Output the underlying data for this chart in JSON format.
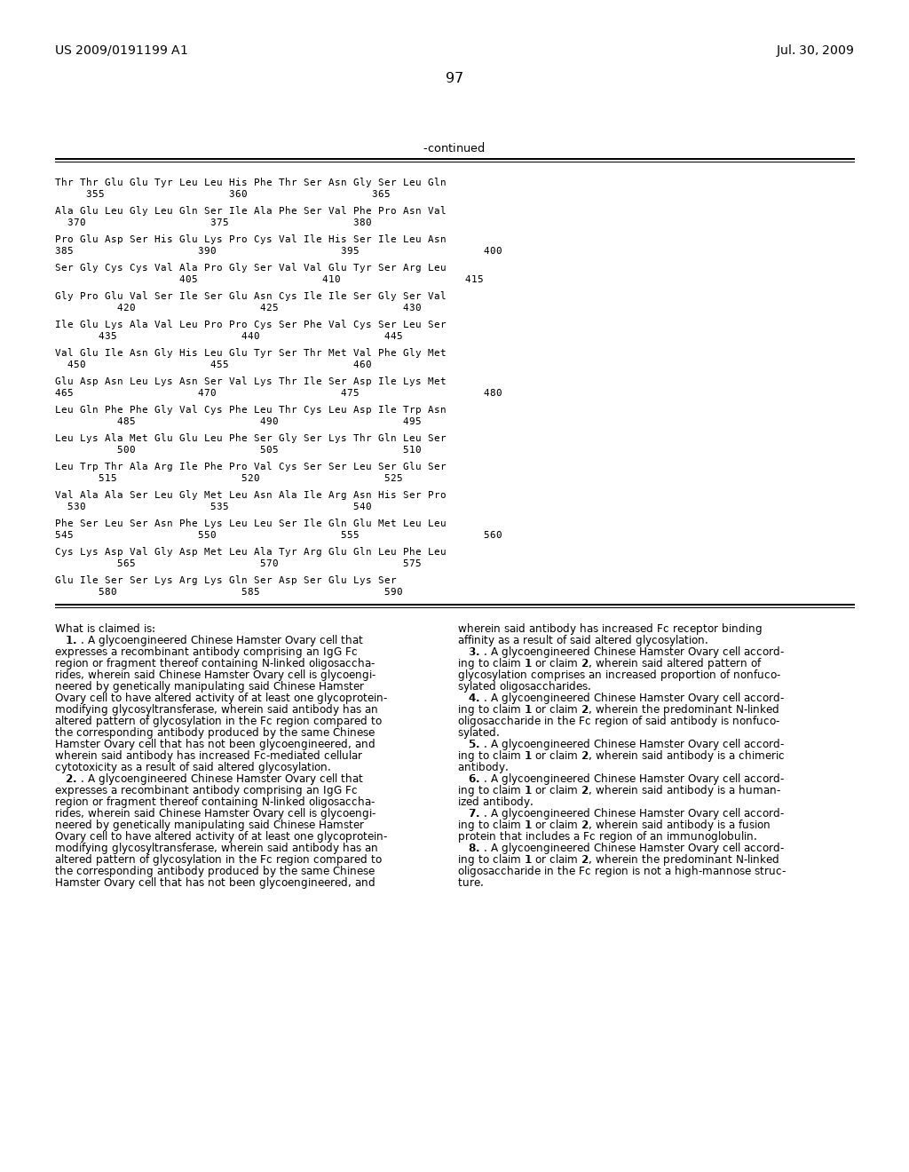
{
  "header_left": "US 2009/0191199 A1",
  "header_right": "Jul. 30, 2009",
  "page_number": "97",
  "continued_label": "-continued",
  "seq_lines": [
    [
      "Thr Thr Glu Glu Tyr Leu Leu His Phe Thr Ser Asn Gly Ser Leu Gln",
      "     355                    360                    365"
    ],
    [
      "Ala Glu Leu Gly Leu Gln Ser Ile Ala Phe Ser Val Phe Pro Asn Val",
      "  370                    375                    380"
    ],
    [
      "Pro Glu Asp Ser His Glu Lys Pro Cys Val Ile His Ser Ile Leu Asn",
      "385                    390                    395                    400"
    ],
    [
      "Ser Gly Cys Cys Val Ala Pro Gly Ser Val Val Glu Tyr Ser Arg Leu",
      "                    405                    410                    415"
    ],
    [
      "Gly Pro Glu Val Ser Ile Ser Glu Asn Cys Ile Ile Ser Gly Ser Val",
      "          420                    425                    430"
    ],
    [
      "Ile Glu Lys Ala Val Leu Pro Pro Cys Ser Phe Val Cys Ser Leu Ser",
      "       435                    440                    445"
    ],
    [
      "Val Glu Ile Asn Gly His Leu Glu Tyr Ser Thr Met Val Phe Gly Met",
      "  450                    455                    460"
    ],
    [
      "Glu Asp Asn Leu Lys Asn Ser Val Lys Thr Ile Ser Asp Ile Lys Met",
      "465                    470                    475                    480"
    ],
    [
      "Leu Gln Phe Phe Gly Val Cys Phe Leu Thr Cys Leu Asp Ile Trp Asn",
      "          485                    490                    495"
    ],
    [
      "Leu Lys Ala Met Glu Glu Leu Phe Ser Gly Ser Lys Thr Gln Leu Ser",
      "          500                    505                    510"
    ],
    [
      "Leu Trp Thr Ala Arg Ile Phe Pro Val Cys Ser Ser Leu Ser Glu Ser",
      "       515                    520                    525"
    ],
    [
      "Val Ala Ala Ser Leu Gly Met Leu Asn Ala Ile Arg Asn His Ser Pro",
      "  530                    535                    540"
    ],
    [
      "Phe Ser Leu Ser Asn Phe Lys Leu Leu Ser Ile Gln Glu Met Leu Leu",
      "545                    550                    555                    560"
    ],
    [
      "Cys Lys Asp Val Gly Asp Met Leu Ala Tyr Arg Glu Gln Leu Phe Leu",
      "          565                    570                    575"
    ],
    [
      "Glu Ile Ser Ser Lys Arg Lys Gln Ser Asp Ser Glu Lys Ser",
      "       580                    585                    590"
    ]
  ],
  "claims_left": [
    {
      "text": "What is claimed is:",
      "indent": 0,
      "bold_prefix": ""
    },
    {
      "text": "1",
      "bold_prefix": "1",
      "rest": ". A glycoengineered Chinese Hamster Ovary cell that",
      "indent": 1
    },
    {
      "text": "expresses a recombinant antibody comprising an IgG Fc",
      "indent": 0,
      "bold_prefix": ""
    },
    {
      "text": "region or fragment thereof containing N-linked oligosaccha-",
      "indent": 0,
      "bold_prefix": ""
    },
    {
      "text": "rides, wherein said Chinese Hamster Ovary cell is glycoengi-",
      "indent": 0,
      "bold_prefix": ""
    },
    {
      "text": "neered by genetically manipulating said Chinese Hamster",
      "indent": 0,
      "bold_prefix": ""
    },
    {
      "text": "Ovary cell to have altered activity of at least one glycoprotein-",
      "indent": 0,
      "bold_prefix": ""
    },
    {
      "text": "modifying glycosyltransferase, wherein said antibody has an",
      "indent": 0,
      "bold_prefix": ""
    },
    {
      "text": "altered pattern of glycosylation in the Fc region compared to",
      "indent": 0,
      "bold_prefix": ""
    },
    {
      "text": "the corresponding antibody produced by the same Chinese",
      "indent": 0,
      "bold_prefix": ""
    },
    {
      "text": "Hamster Ovary cell that has not been glycoengineered, and",
      "indent": 0,
      "bold_prefix": ""
    },
    {
      "text": "wherein said antibody has increased Fc-mediated cellular",
      "indent": 0,
      "bold_prefix": ""
    },
    {
      "text": "cytotoxicity as a result of said altered glycosylation.",
      "indent": 0,
      "bold_prefix": ""
    },
    {
      "text": "2",
      "bold_prefix": "2",
      "rest": ". A glycoengineered Chinese Hamster Ovary cell that",
      "indent": 1
    },
    {
      "text": "expresses a recombinant antibody comprising an IgG Fc",
      "indent": 0,
      "bold_prefix": ""
    },
    {
      "text": "region or fragment thereof containing N-linked oligosaccha-",
      "indent": 0,
      "bold_prefix": ""
    },
    {
      "text": "rides, wherein said Chinese Hamster Ovary cell is glycoengi-",
      "indent": 0,
      "bold_prefix": ""
    },
    {
      "text": "neered by genetically manipulating said Chinese Hamster",
      "indent": 0,
      "bold_prefix": ""
    },
    {
      "text": "Ovary cell to have altered activity of at least one glycoprotein-",
      "indent": 0,
      "bold_prefix": ""
    },
    {
      "text": "modifying glycosyltransferase, wherein said antibody has an",
      "indent": 0,
      "bold_prefix": ""
    },
    {
      "text": "altered pattern of glycosylation in the Fc region compared to",
      "indent": 0,
      "bold_prefix": ""
    },
    {
      "text": "the corresponding antibody produced by the same Chinese",
      "indent": 0,
      "bold_prefix": ""
    },
    {
      "text": "Hamster Ovary cell that has not been glycoengineered, and",
      "indent": 0,
      "bold_prefix": ""
    }
  ],
  "claims_right": [
    {
      "text": "wherein said antibody has increased Fc receptor binding",
      "indent": 0,
      "bold_prefix": ""
    },
    {
      "text": "affinity as a result of said altered glycosylation.",
      "indent": 0,
      "bold_prefix": ""
    },
    {
      "text": "3",
      "bold_prefix": "3",
      "rest": ". A glycoengineered Chinese Hamster Ovary cell accord-",
      "indent": 1
    },
    {
      "text": "ing to claim ",
      "bold_prefix": "",
      "indent": 0,
      "inline_bold": [
        [
          "1",
          " or claim "
        ],
        [
          "2",
          ", wherein said altered pattern of"
        ]
      ]
    },
    {
      "text": "glycosylation comprises an increased proportion of nonfuco-",
      "indent": 0,
      "bold_prefix": ""
    },
    {
      "text": "sylated oligosaccharides.",
      "indent": 0,
      "bold_prefix": ""
    },
    {
      "text": "4",
      "bold_prefix": "4",
      "rest": ". A glycoengineered Chinese Hamster Ovary cell accord-",
      "indent": 1
    },
    {
      "text": "ing to claim ",
      "bold_prefix": "",
      "indent": 0,
      "inline_bold": [
        [
          "1",
          " or claim "
        ],
        [
          "2",
          ", wherein the predominant N-linked"
        ]
      ]
    },
    {
      "text": "oligosaccharide in the Fc region of said antibody is nonfuco-",
      "indent": 0,
      "bold_prefix": ""
    },
    {
      "text": "sylated.",
      "indent": 0,
      "bold_prefix": ""
    },
    {
      "text": "5",
      "bold_prefix": "5",
      "rest": ". A glycoengineered Chinese Hamster Ovary cell accord-",
      "indent": 1
    },
    {
      "text": "ing to claim ",
      "bold_prefix": "",
      "indent": 0,
      "inline_bold": [
        [
          "1",
          " or claim "
        ],
        [
          "2",
          ", wherein said antibody is a chimeric"
        ]
      ]
    },
    {
      "text": "antibody.",
      "indent": 0,
      "bold_prefix": ""
    },
    {
      "text": "6",
      "bold_prefix": "6",
      "rest": ". A glycoengineered Chinese Hamster Ovary cell accord-",
      "indent": 1
    },
    {
      "text": "ing to claim ",
      "bold_prefix": "",
      "indent": 0,
      "inline_bold": [
        [
          "1",
          " or claim "
        ],
        [
          "2",
          ", wherein said antibody is a human-"
        ]
      ]
    },
    {
      "text": "ized antibody.",
      "indent": 0,
      "bold_prefix": ""
    },
    {
      "text": "7",
      "bold_prefix": "7",
      "rest": ". A glycoengineered Chinese Hamster Ovary cell accord-",
      "indent": 1
    },
    {
      "text": "ing to claim ",
      "bold_prefix": "",
      "indent": 0,
      "inline_bold": [
        [
          "1",
          " or claim "
        ],
        [
          "2",
          ", wherein said antibody is a fusion"
        ]
      ]
    },
    {
      "text": "protein that includes a Fc region of an immunoglobulin.",
      "indent": 0,
      "bold_prefix": ""
    },
    {
      "text": "8",
      "bold_prefix": "8",
      "rest": ". A glycoengineered Chinese Hamster Ovary cell accord-",
      "indent": 1
    },
    {
      "text": "ing to claim ",
      "bold_prefix": "",
      "indent": 0,
      "inline_bold": [
        [
          "1",
          " or claim "
        ],
        [
          "2",
          ", wherein the predominant N-linked"
        ]
      ]
    },
    {
      "text": "oligosaccharide in the Fc region is not a high-mannose struc-",
      "indent": 0,
      "bold_prefix": ""
    },
    {
      "text": "ture.",
      "indent": 0,
      "bold_prefix": ""
    }
  ],
  "bg_color": "#ffffff",
  "text_color": "#000000",
  "line_color": "#000000"
}
